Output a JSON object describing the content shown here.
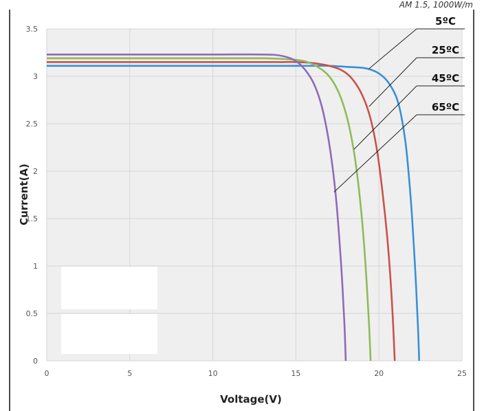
{
  "chart_data": {
    "type": "line",
    "condition": "AM 1.5, 1000W/m",
    "xlabel": "Voltage(V)",
    "ylabel": "Current(A)",
    "xlim": [
      0,
      25
    ],
    "ylim": [
      0,
      3.5
    ],
    "x_ticks": [
      "0",
      "5",
      "10",
      "15",
      "20",
      "25"
    ],
    "y_ticks": [
      "0",
      "0.5",
      "1",
      "1.5",
      "2",
      "2.5",
      "3",
      "3.5"
    ],
    "grid": true,
    "series": [
      {
        "name": "5ºC",
        "color": "#3a8fd6",
        "points": [
          [
            0,
            3.11
          ],
          [
            5,
            3.11
          ],
          [
            10,
            3.11
          ],
          [
            14,
            3.11
          ],
          [
            16,
            3.11
          ],
          [
            17,
            3.11
          ],
          [
            18,
            3.1
          ],
          [
            19,
            3.09
          ],
          [
            19.5,
            3.07
          ],
          [
            20,
            3.03
          ],
          [
            20.5,
            2.95
          ],
          [
            21,
            2.8
          ],
          [
            21.3,
            2.62
          ],
          [
            21.6,
            2.3
          ],
          [
            21.8,
            1.95
          ],
          [
            22.0,
            1.5
          ],
          [
            22.2,
            0.9
          ],
          [
            22.35,
            0.35
          ],
          [
            22.42,
            0
          ]
        ]
      },
      {
        "name": "25ºC",
        "color": "#c8524a",
        "points": [
          [
            0,
            3.15
          ],
          [
            5,
            3.15
          ],
          [
            10,
            3.15
          ],
          [
            14,
            3.15
          ],
          [
            15,
            3.15
          ],
          [
            16,
            3.14
          ],
          [
            17,
            3.11
          ],
          [
            17.8,
            3.06
          ],
          [
            18.4,
            2.97
          ],
          [
            19,
            2.8
          ],
          [
            19.5,
            2.55
          ],
          [
            19.9,
            2.2
          ],
          [
            20.2,
            1.8
          ],
          [
            20.5,
            1.3
          ],
          [
            20.7,
            0.85
          ],
          [
            20.85,
            0.4
          ],
          [
            20.95,
            0
          ]
        ]
      },
      {
        "name": "45ºC",
        "color": "#8fba5a",
        "points": [
          [
            0,
            3.19
          ],
          [
            5,
            3.19
          ],
          [
            10,
            3.19
          ],
          [
            13,
            3.19
          ],
          [
            14.5,
            3.18
          ],
          [
            15.5,
            3.16
          ],
          [
            16.3,
            3.1
          ],
          [
            17,
            3.0
          ],
          [
            17.6,
            2.82
          ],
          [
            18.1,
            2.55
          ],
          [
            18.5,
            2.2
          ],
          [
            18.8,
            1.8
          ],
          [
            19.05,
            1.35
          ],
          [
            19.25,
            0.85
          ],
          [
            19.4,
            0.4
          ],
          [
            19.5,
            0
          ]
        ]
      },
      {
        "name": "65ºC",
        "color": "#8c6bb8",
        "points": [
          [
            0,
            3.23
          ],
          [
            5,
            3.23
          ],
          [
            10,
            3.23
          ],
          [
            13,
            3.23
          ],
          [
            14,
            3.22
          ],
          [
            14.8,
            3.18
          ],
          [
            15.4,
            3.1
          ],
          [
            16,
            2.95
          ],
          [
            16.5,
            2.72
          ],
          [
            16.9,
            2.4
          ],
          [
            17.2,
            2.05
          ],
          [
            17.45,
            1.65
          ],
          [
            17.65,
            1.2
          ],
          [
            17.8,
            0.8
          ],
          [
            17.92,
            0.4
          ],
          [
            18.0,
            0
          ]
        ]
      }
    ],
    "annotations": [
      {
        "text": "5ºC",
        "target_x": 19.4,
        "target_y": 3.08
      },
      {
        "text": "25ºC",
        "target_x": 19.4,
        "target_y": 2.68
      },
      {
        "text": "45ºC",
        "target_x": 18.5,
        "target_y": 2.23
      },
      {
        "text": "65ºC",
        "target_x": 17.3,
        "target_y": 1.78
      }
    ]
  }
}
